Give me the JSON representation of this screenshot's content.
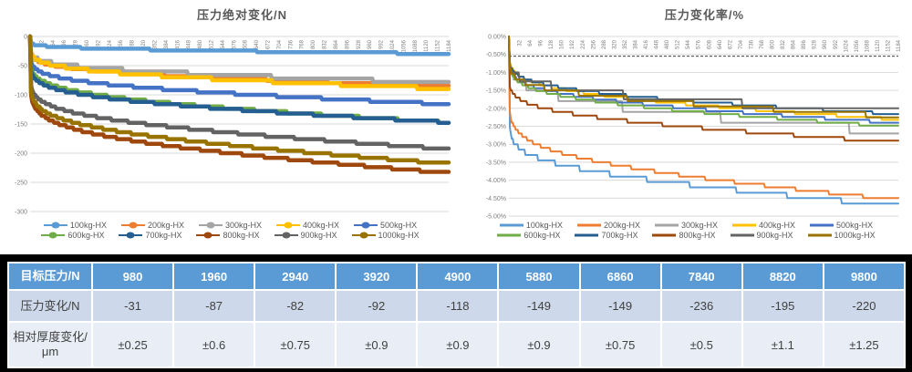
{
  "chart_data": [
    {
      "type": "line",
      "title": "压力绝对变化/N",
      "xlabel": "",
      "ylabel": "",
      "ylim": [
        0,
        -300
      ],
      "grid": true,
      "legend_position": "bottom",
      "y_ticks": [
        "0",
        "-50",
        "-100",
        "-150",
        "-200",
        "-250",
        "-300"
      ],
      "x_ticks": [
        32,
        64,
        96,
        128,
        160,
        192,
        224,
        256,
        288,
        320,
        352,
        384,
        416,
        448,
        480,
        512,
        544,
        576,
        608,
        640,
        672,
        704,
        736,
        768,
        800,
        832,
        864,
        896,
        928,
        960,
        992,
        1024,
        1056,
        1088,
        1120,
        1152,
        1184
      ],
      "series": [
        {
          "name": "100kg-HX",
          "color": "#5B9BD5",
          "final": -31,
          "quant": 3,
          "p": 0.12
        },
        {
          "name": "200kg-HX",
          "color": "#ED7D31",
          "final": -87,
          "quant": 4,
          "p": 0.13
        },
        {
          "name": "300kg-HX",
          "color": "#A5A5A5",
          "final": -82,
          "quant": 6,
          "p": 0.13
        },
        {
          "name": "400kg-HX",
          "color": "#FFC000",
          "final": -92,
          "quant": 5,
          "p": 0.15
        },
        {
          "name": "500kg-HX",
          "color": "#4472C4",
          "final": -118,
          "quant": 4,
          "p": 0.13
        },
        {
          "name": "600kg-HX",
          "color": "#70AD47",
          "final": -149,
          "quant": 4,
          "p": 0.14
        },
        {
          "name": "700kg-HX",
          "color": "#255E91",
          "final": -149,
          "quant": 4,
          "p": 0.12
        },
        {
          "name": "800kg-HX",
          "color": "#9E480E",
          "final": -236,
          "quant": 4,
          "p": 0.11
        },
        {
          "name": "900kg-HX",
          "color": "#636363",
          "final": -195,
          "quant": 4,
          "p": 0.11
        },
        {
          "name": "1000kg-HX",
          "color": "#997300",
          "final": -220,
          "quant": 4,
          "p": 0.11
        }
      ]
    },
    {
      "type": "line",
      "title": "压力变化率/%",
      "xlabel": "",
      "ylabel": "",
      "ylim": [
        0,
        -5
      ],
      "grid": true,
      "legend_position": "bottom",
      "ref_line_pct": -0.55,
      "y_ticks": [
        "0.00%",
        "-0.50%",
        "-1.00%",
        "-1.50%",
        "-2.00%",
        "-2.50%",
        "-3.00%",
        "-3.50%",
        "-4.00%",
        "-4.50%",
        "-5.00%"
      ],
      "x_ticks": [
        32,
        64,
        96,
        128,
        160,
        192,
        224,
        256,
        288,
        320,
        352,
        384,
        416,
        448,
        480,
        512,
        544,
        576,
        608,
        640,
        672,
        704,
        736,
        768,
        800,
        832,
        864,
        896,
        928,
        960,
        992,
        1024,
        1056,
        1088,
        1120,
        1152,
        1184
      ],
      "series": [
        {
          "name": "100kg-HX",
          "color": "#5B9BD5",
          "final": -4.8,
          "quant": 0.15,
          "p": 0.07
        },
        {
          "name": "200kg-HX",
          "color": "#ED7D31",
          "final": -4.6,
          "quant": 0.1,
          "p": 0.1
        },
        {
          "name": "300kg-HX",
          "color": "#A5A5A5",
          "final": -2.8,
          "quant": 0.3,
          "p": 0.15
        },
        {
          "name": "400kg-HX",
          "color": "#FFC000",
          "final": -2.35,
          "quant": 0.08,
          "p": 0.16
        },
        {
          "name": "500kg-HX",
          "color": "#4472C4",
          "final": -2.45,
          "quant": 0.08,
          "p": 0.14
        },
        {
          "name": "600kg-HX",
          "color": "#70AD47",
          "final": -2.55,
          "quant": 0.08,
          "p": 0.14
        },
        {
          "name": "700kg-HX",
          "color": "#255E91",
          "final": -2.2,
          "quant": 0.08,
          "p": 0.14
        },
        {
          "name": "800kg-HX",
          "color": "#9E480E",
          "final": -3.0,
          "quant": 0.1,
          "p": 0.1
        },
        {
          "name": "900kg-HX",
          "color": "#636363",
          "final": -2.25,
          "quant": 0.25,
          "p": 0.12
        },
        {
          "name": "1000kg-HX",
          "color": "#997300",
          "final": -2.3,
          "quant": 0.15,
          "p": 0.12
        }
      ]
    },
    {
      "type": "table",
      "header": {
        "label": "目标压力/N",
        "values": [
          "980",
          "1960",
          "2940",
          "3920",
          "4900",
          "5880",
          "6860",
          "7840",
          "8820",
          "9800"
        ]
      },
      "rows": [
        {
          "label": "压力变化/N",
          "values": [
            "-31",
            "-87",
            "-82",
            "-92",
            "-118",
            "-149",
            "-149",
            "-236",
            "-195",
            "-220"
          ]
        },
        {
          "label": "相对厚度变化/μm",
          "values": [
            "±0.25",
            "±0.6",
            "±0.75",
            "±0.9",
            "±0.9",
            "±0.9",
            "±0.75",
            "±0.5",
            "±1.1",
            "±1.25"
          ]
        }
      ],
      "style": {
        "header_bg": "#5B9BD5",
        "header_text": "#FFFFFF",
        "band1_bg": "#CDD9EA",
        "band2_bg": "#E9EEF6",
        "body_text": "#404040"
      }
    }
  ],
  "colors": {
    "gridline": "#D9D9D9",
    "axis_text": "#7F7F7F",
    "title_text": "#595959",
    "ref_line": "#404040",
    "panel_bg": "#FFFFFF",
    "page_bg": "#000000"
  }
}
